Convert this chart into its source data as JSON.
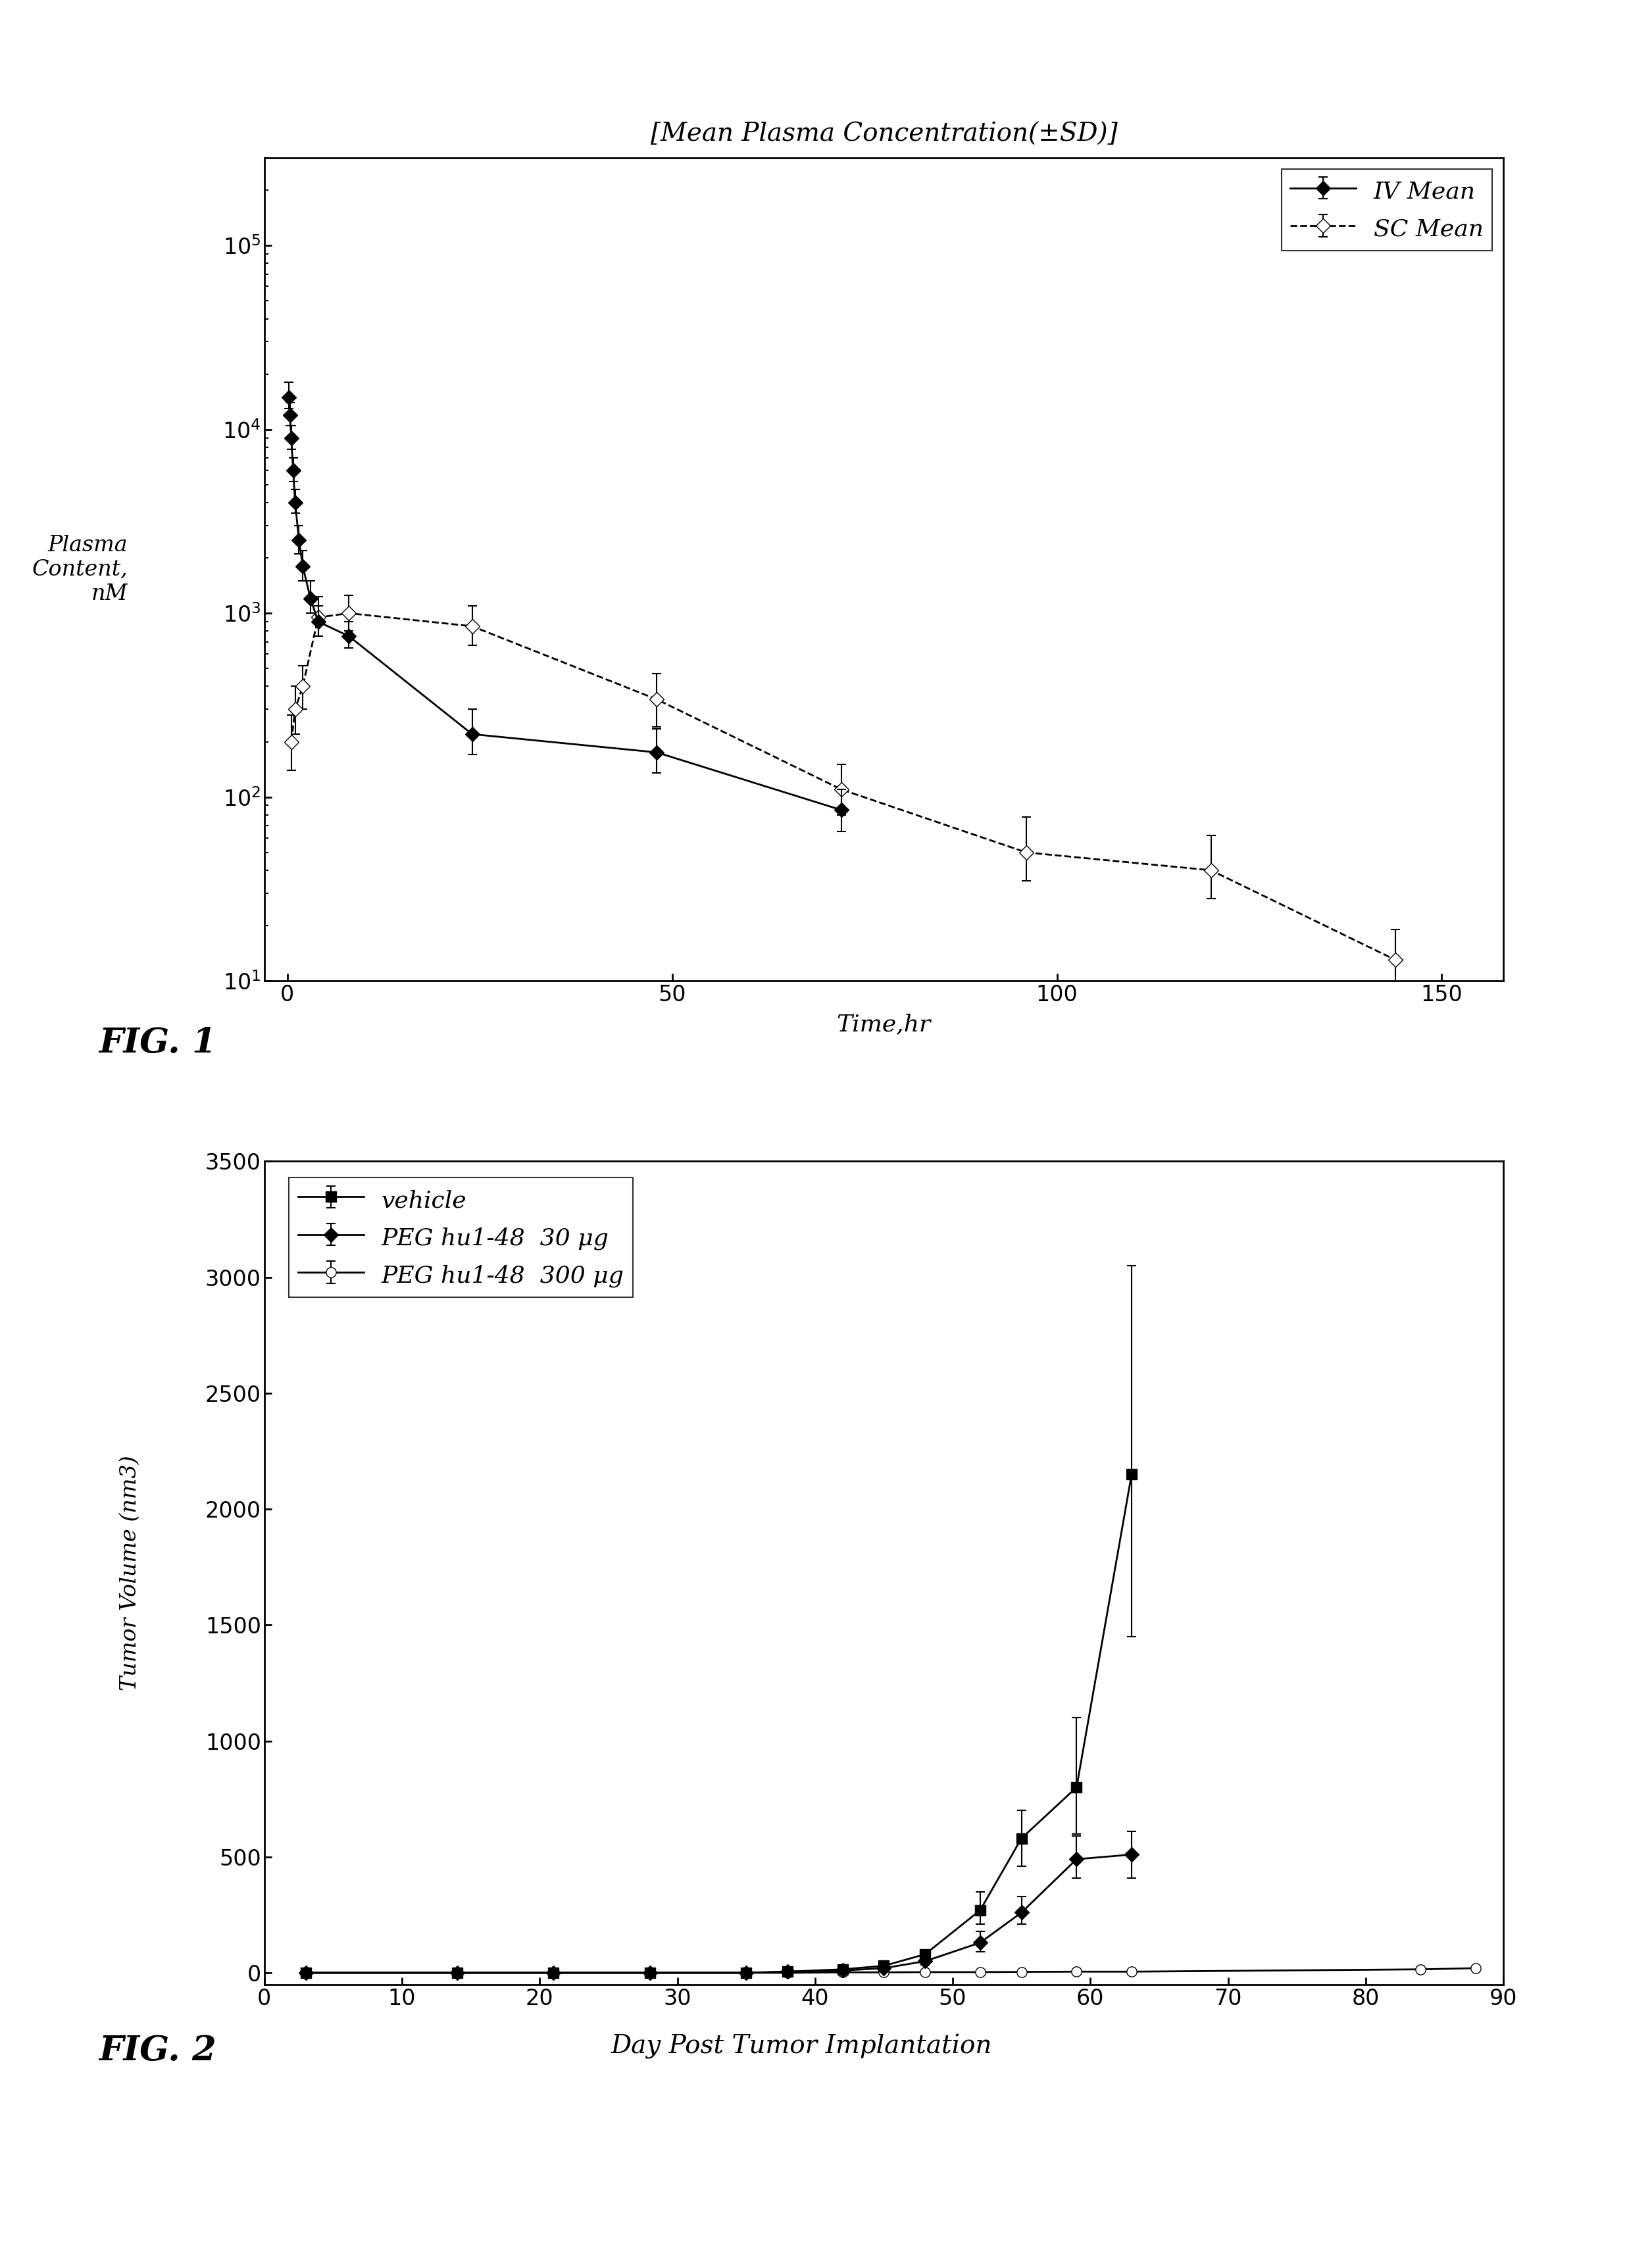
{
  "fig1": {
    "title": "[Mean Plasma Concentration(±SD)]",
    "xlabel": "Time,hr",
    "ylabel": "Plasma\nContent,\nnM",
    "xlim": [
      -3,
      158
    ],
    "ylim": [
      10,
      300000
    ],
    "xticks": [
      0,
      50,
      100,
      150
    ],
    "yticks_major": [
      10,
      100,
      1000,
      10000,
      100000
    ],
    "figcaption": "FIG. 1",
    "iv_x": [
      0.17,
      0.33,
      0.5,
      0.75,
      1.0,
      1.5,
      2.0,
      3.0,
      4.0,
      8.0,
      24.0,
      48.0,
      72.0
    ],
    "iv_y": [
      15000,
      12000,
      9000,
      6000,
      4000,
      2500,
      1800,
      1200,
      900,
      750,
      220,
      175,
      85
    ],
    "iv_yerr_lo": [
      2000,
      1500,
      1200,
      800,
      500,
      400,
      300,
      200,
      150,
      100,
      50,
      40,
      20
    ],
    "iv_yerr_hi": [
      3000,
      2000,
      1500,
      1000,
      700,
      500,
      400,
      300,
      200,
      150,
      80,
      60,
      25
    ],
    "sc_x": [
      0.5,
      1.0,
      2.0,
      4.0,
      8.0,
      24.0,
      48.0,
      72.0,
      96.0,
      120.0,
      144.0
    ],
    "sc_y": [
      200,
      300,
      400,
      950,
      1000,
      850,
      340,
      110,
      50,
      40,
      13
    ],
    "sc_yerr_lo": [
      60,
      80,
      100,
      200,
      200,
      180,
      100,
      30,
      15,
      12,
      4
    ],
    "sc_yerr_hi": [
      80,
      100,
      120,
      280,
      250,
      250,
      130,
      40,
      28,
      22,
      6
    ],
    "legend_labels": [
      "IV Mean",
      "SC Mean"
    ]
  },
  "fig2": {
    "xlabel": "Day Post Tumor Implantation",
    "ylabel": "Tumor Volume (nm3)",
    "xlim": [
      0,
      90
    ],
    "ylim": [
      -50,
      3500
    ],
    "xticks": [
      0,
      10,
      20,
      30,
      40,
      50,
      60,
      70,
      80,
      90
    ],
    "yticks": [
      0,
      500,
      1000,
      1500,
      2000,
      2500,
      3000,
      3500
    ],
    "figcaption": "FIG. 2",
    "vehicle_x": [
      3,
      14,
      21,
      28,
      35,
      38,
      42,
      45,
      48,
      52,
      55,
      59,
      63
    ],
    "vehicle_y": [
      0,
      0,
      0,
      0,
      0,
      5,
      15,
      30,
      80,
      270,
      580,
      800,
      2150
    ],
    "vehicle_yerr_lo": [
      0,
      0,
      0,
      0,
      0,
      3,
      5,
      10,
      20,
      60,
      120,
      200,
      700
    ],
    "vehicle_yerr_hi": [
      0,
      0,
      0,
      0,
      0,
      3,
      5,
      10,
      20,
      80,
      120,
      300,
      900
    ],
    "peg30_x": [
      3,
      14,
      21,
      28,
      35,
      38,
      42,
      45,
      48,
      52,
      55,
      59,
      63
    ],
    "peg30_y": [
      0,
      0,
      0,
      0,
      0,
      5,
      10,
      20,
      50,
      130,
      260,
      490,
      510
    ],
    "peg30_yerr_lo": [
      0,
      0,
      0,
      0,
      0,
      3,
      4,
      8,
      15,
      40,
      50,
      80,
      100
    ],
    "peg30_yerr_hi": [
      0,
      0,
      0,
      0,
      0,
      3,
      5,
      10,
      20,
      50,
      70,
      100,
      100
    ],
    "peg300_x": [
      3,
      14,
      21,
      28,
      35,
      38,
      42,
      45,
      48,
      52,
      55,
      59,
      63,
      84,
      88
    ],
    "peg300_y": [
      0,
      0,
      0,
      0,
      0,
      0,
      2,
      2,
      3,
      3,
      4,
      5,
      5,
      15,
      20
    ],
    "peg300_yerr_lo": [
      0,
      0,
      0,
      0,
      0,
      0,
      1,
      1,
      1,
      1,
      1,
      2,
      2,
      5,
      5
    ],
    "peg300_yerr_hi": [
      0,
      0,
      0,
      0,
      0,
      0,
      1,
      1,
      1,
      1,
      1,
      2,
      2,
      8,
      8
    ],
    "legend_labels": [
      "vehicle",
      "PEG hu1-48  30 μg",
      "PEG hu1-48  300 μg"
    ]
  },
  "bg_color": "#ffffff",
  "line_color": "#000000"
}
